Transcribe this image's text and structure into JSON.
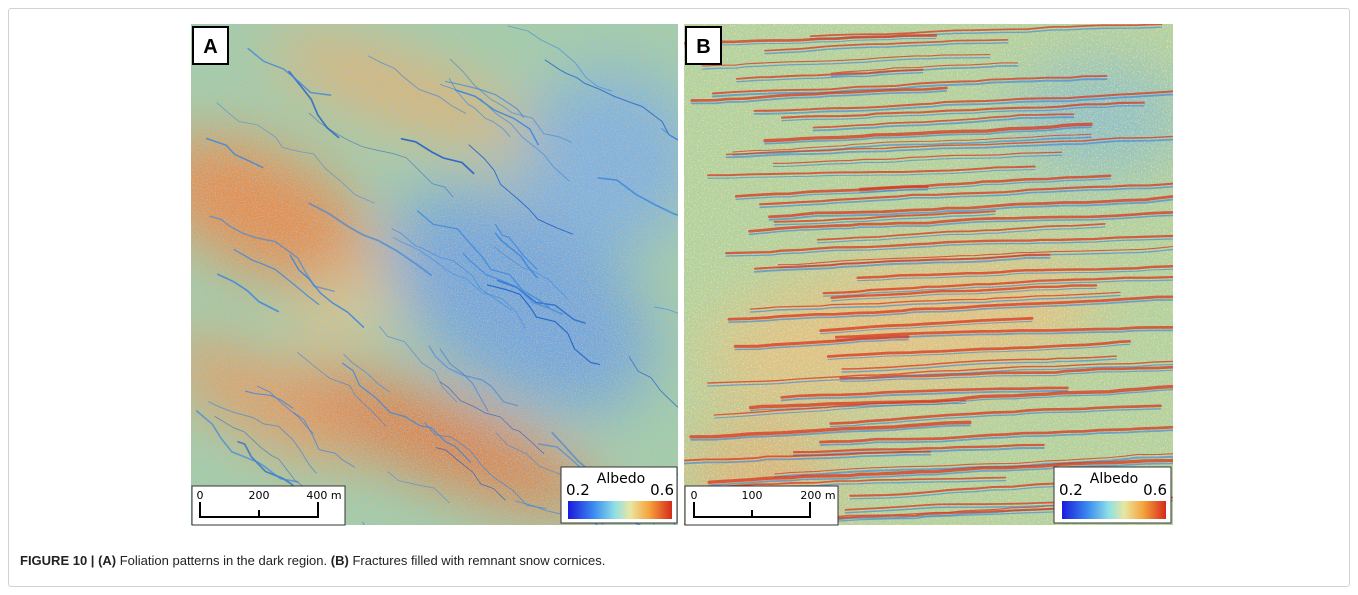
{
  "figure": {
    "panels": [
      {
        "label": "A",
        "scale_bar": {
          "ticks": [
            "0",
            "200",
            "400 m"
          ]
        },
        "colorbar": {
          "title": "Albedo",
          "min": "0.2",
          "max": "0.6"
        }
      },
      {
        "label": "B",
        "scale_bar": {
          "ticks": [
            "0",
            "100",
            "200 m"
          ]
        },
        "colorbar": {
          "title": "Albedo",
          "min": "0.2",
          "max": "0.6"
        }
      }
    ],
    "caption": {
      "label": "FIGURE 10 |",
      "parts": [
        {
          "tag": "(A)",
          "text": "Foliation patterns in the dark region."
        },
        {
          "tag": "(B)",
          "text": "Fractures filled with remnant snow cornices."
        }
      ]
    }
  }
}
